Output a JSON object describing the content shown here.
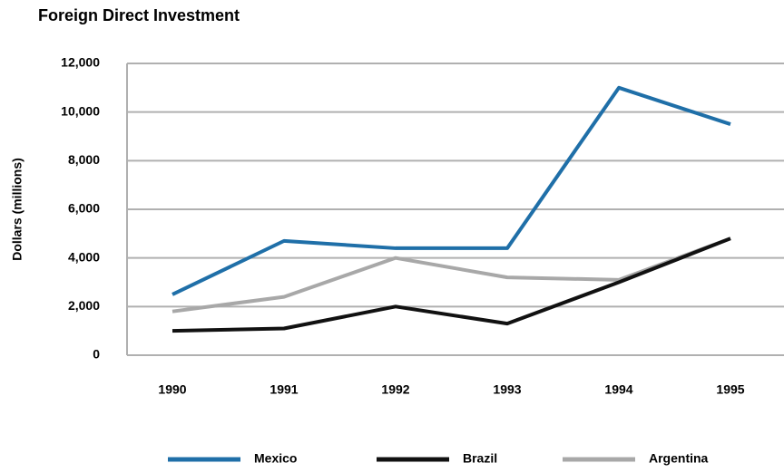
{
  "chart_data": {
    "type": "line",
    "title": "Foreign Direct Investment",
    "y_label": "Dollars (millions)",
    "categories": [
      "1990",
      "1991",
      "1992",
      "1993",
      "1994",
      "1995"
    ],
    "series": [
      {
        "name": "Mexico",
        "color": "#1f6fa8",
        "values": [
          2500,
          4700,
          4400,
          4400,
          11000,
          9500
        ]
      },
      {
        "name": "Brazil",
        "color": "#111111",
        "values": [
          1000,
          1100,
          2000,
          1300,
          3000,
          4800
        ]
      },
      {
        "name": "Argentina",
        "color": "#a8a8a8",
        "values": [
          1800,
          2400,
          4000,
          3200,
          3100,
          4800
        ]
      }
    ],
    "ylim": [
      0,
      12000
    ],
    "yticks": [
      0,
      {
        "value": 2000,
        "label": "2,000"
      },
      {
        "value": 4000,
        "label": "4,000"
      },
      {
        "value": 6000,
        "label": "6,000"
      },
      {
        "value": 8000,
        "label": "8,000"
      },
      {
        "value": 10000,
        "label": "10,000"
      },
      {
        "value": 12000,
        "label": "12,000"
      }
    ],
    "grid": true,
    "legend": "bottom"
  }
}
